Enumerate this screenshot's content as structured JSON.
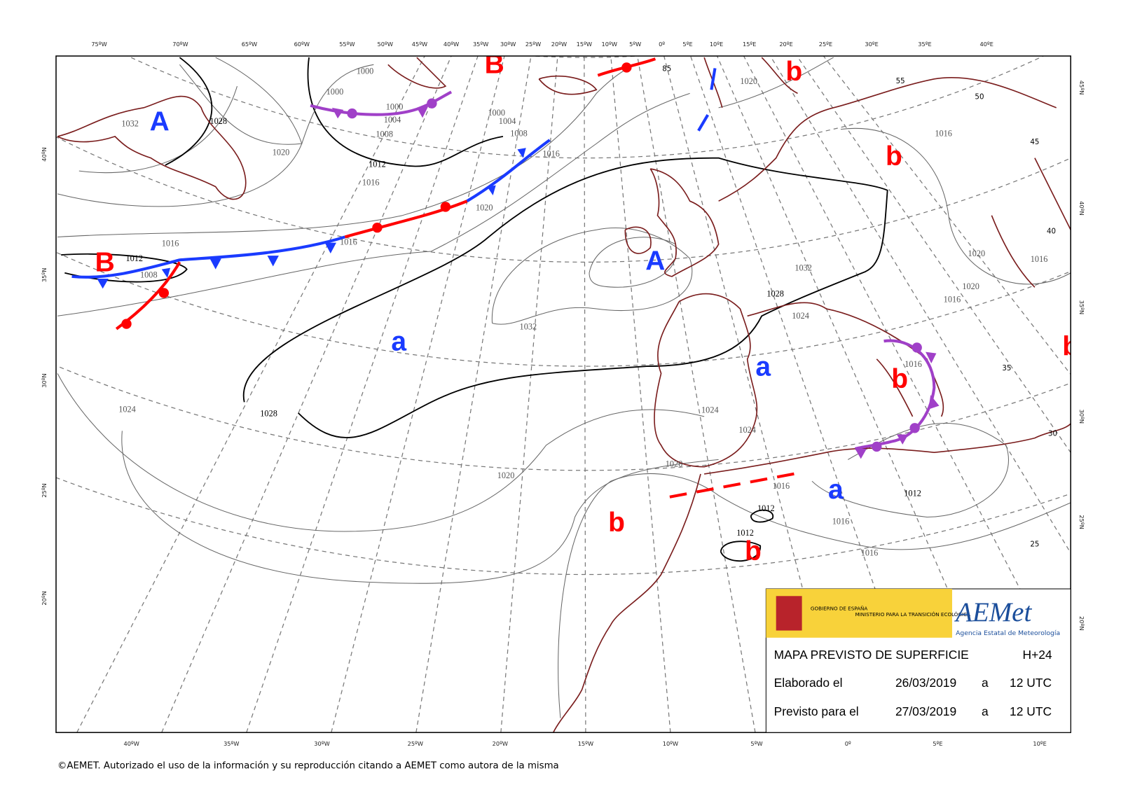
{
  "top_lon_labels": [
    "75ºW",
    "70ºW",
    "65ºW",
    "60ºW",
    "55ºW",
    "50ºW",
    "45ºW",
    "40ºW",
    "35ºW",
    "30ºW",
    "25ºW",
    "20ºW",
    "15ºW",
    "10ºW",
    "5ºW",
    "0º",
    "5ºE",
    "10ºE",
    "15ºE",
    "20ºE",
    "25ºE",
    "30ºE",
    "35ºE",
    "40ºE"
  ],
  "bottom_lon_labels": [
    "40ºW",
    "35ºW",
    "30ºW",
    "25ºW",
    "20ºW",
    "15ºW",
    "10ºW",
    "5ºW",
    "0º",
    "5ºE",
    "10ºE"
  ],
  "left_lat_labels": [
    "40ºN",
    "35ºN",
    "30ºN",
    "25ºN",
    "20ºN"
  ],
  "right_lat_labels": [
    "45ºN",
    "40ºN",
    "35ºN",
    "30ºN",
    "25ºN",
    "20ºN"
  ],
  "pressure_centers": {
    "highs": [
      "A",
      "A"
    ],
    "lows": [
      "B",
      "B"
    ],
    "relative_highs": [
      "a",
      "a",
      "a"
    ],
    "relative_lows": [
      "b",
      "b",
      "b",
      "b",
      "b",
      "b"
    ]
  },
  "isobar_labels": [
    "1032",
    "1028",
    "1020",
    "1012",
    "1016",
    "1000",
    "1000",
    "1000",
    "1004",
    "1008",
    "1000",
    "1004",
    "1008",
    "1016",
    "1020",
    "1016",
    "1016",
    "1012",
    "1008",
    "1032",
    "1028",
    "1024",
    "1020",
    "1020",
    "1016",
    "1032",
    "1028",
    "1024",
    "1024",
    "1024",
    "1020",
    "1016",
    "1012",
    "1012",
    "1012",
    "1016",
    "1016",
    "1020",
    "1016",
    "1020",
    "1016",
    "1016"
  ],
  "inner_lat_labels": [
    "85",
    "55",
    "50",
    "45",
    "40",
    "35",
    "30",
    "25"
  ],
  "logo": {
    "government": "GOBIERNO DE ESPAÑA",
    "ministry": "MINISTERIO PARA LA TRANSICIÓN ECOLÓGICA",
    "brand": "AEMet",
    "agency": "Agencia Estatal de Meteorología"
  },
  "info": {
    "title": "MAPA PREVISTO DE SUPERFICIE",
    "horizon": "H+24",
    "rows": [
      [
        "Elaborado el",
        "26/03/2019",
        "a",
        "12 UTC"
      ],
      [
        "Previsto para el",
        "27/03/2019",
        "a",
        "12 UTC"
      ]
    ]
  },
  "copyright": "©AEMET. Autorizado el uso de la información y su reproducción citando a AEMET como autora de la misma"
}
